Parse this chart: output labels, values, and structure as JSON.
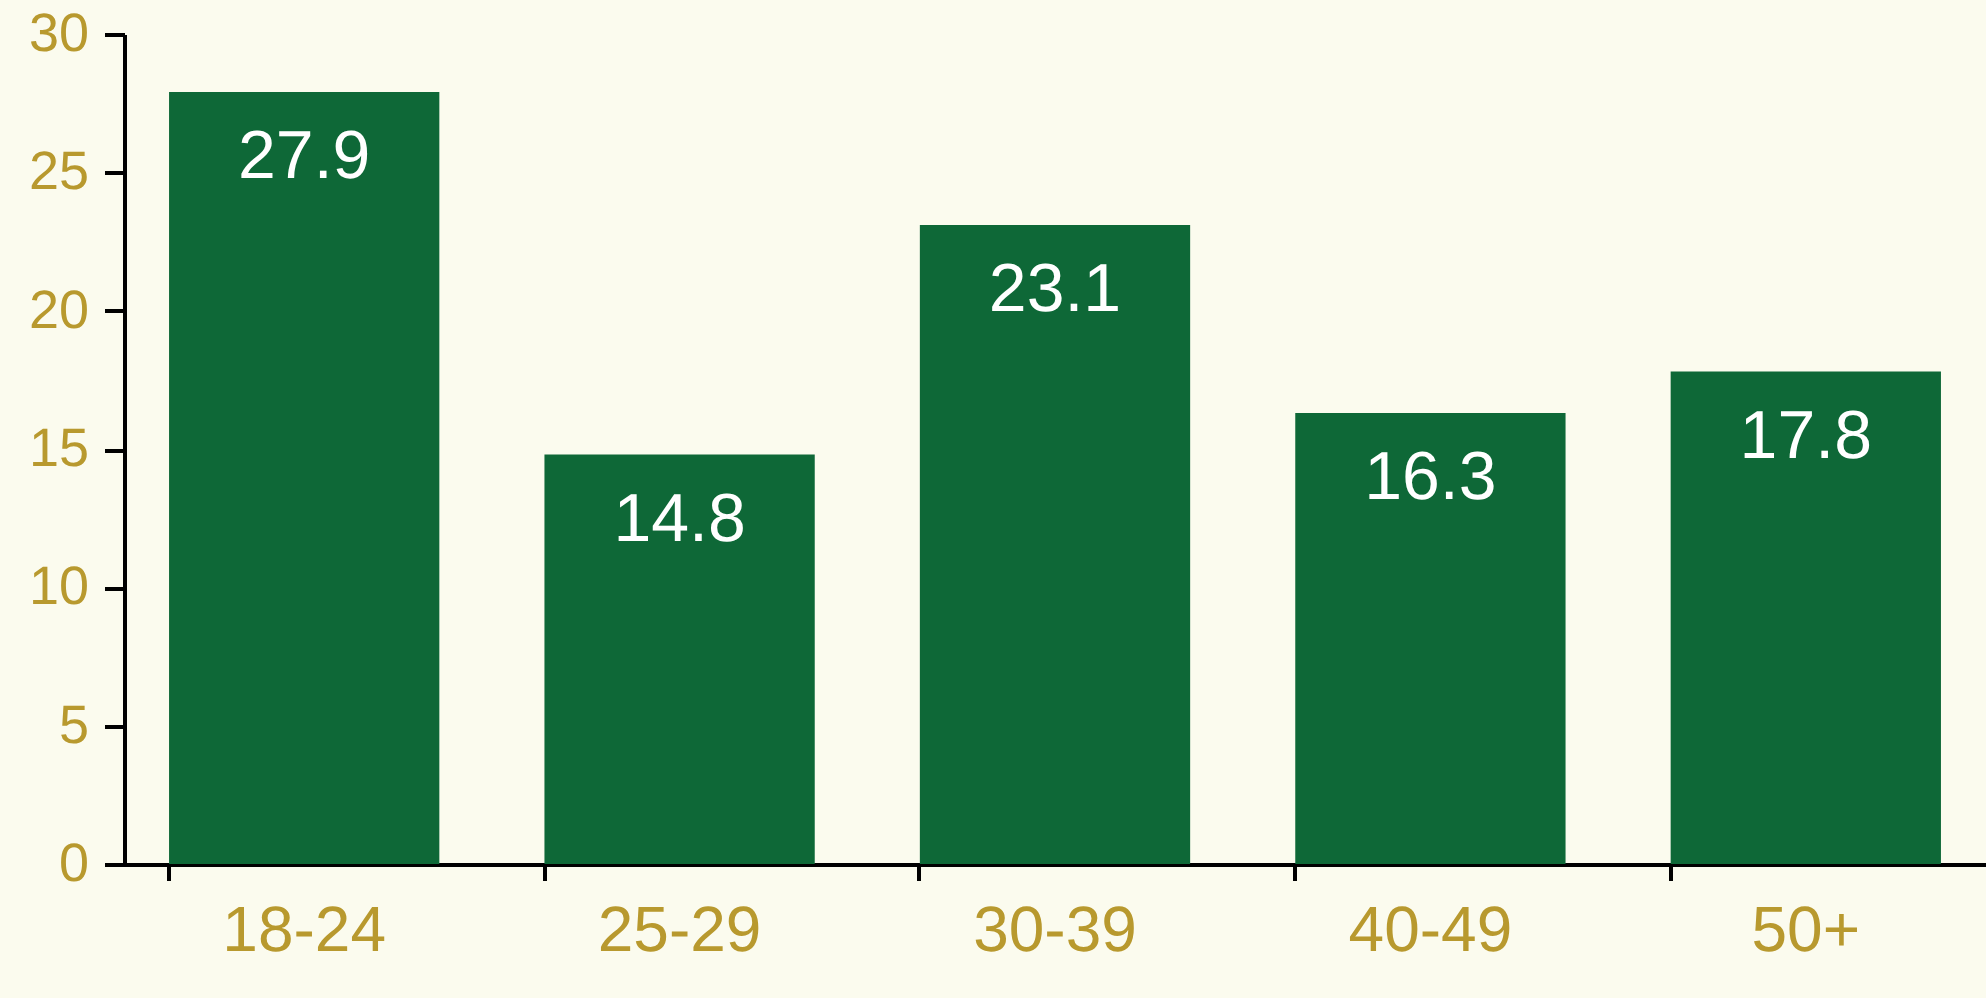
{
  "chart_data": {
    "type": "bar",
    "categories": [
      "18-24",
      "25-29",
      "30-39",
      "40-49",
      "50+"
    ],
    "values": [
      27.9,
      14.8,
      23.1,
      16.3,
      17.8
    ],
    "color": "#0e6837",
    "ylim": [
      0,
      30
    ],
    "yticks": [
      0,
      5,
      10,
      15,
      20,
      25,
      30
    ],
    "data_labels": true
  }
}
